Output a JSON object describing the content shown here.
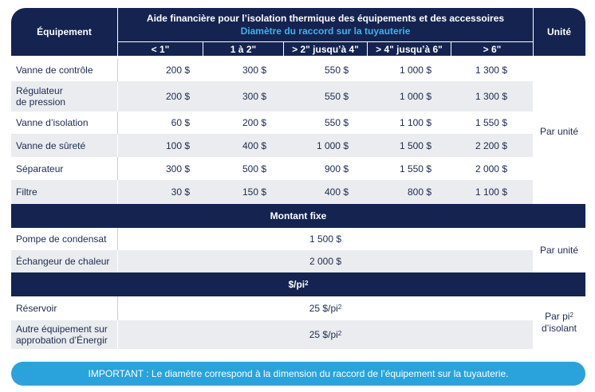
{
  "header": {
    "equipment_col": "Équipement",
    "title": "Aide financière pour l’isolation thermique des équipements et des accessoires",
    "subtitle": "Diamètre du raccord sur la tuyauterie",
    "unit_col": "Unité",
    "sizes": [
      "< 1\"",
      "1 à 2\"",
      "> 2\" jusqu’à 4\"",
      "> 4\" jusqu’à 6\"",
      "> 6\""
    ]
  },
  "section1": {
    "rows": [
      {
        "label": "Vanne de contrôle",
        "values": [
          "200 $",
          "300 $",
          "550 $",
          "1 000 $",
          "1 300 $"
        ]
      },
      {
        "label": "Régulateur\nde pression",
        "values": [
          "200 $",
          "300 $",
          "550 $",
          "1 000 $",
          "1 300 $"
        ]
      },
      {
        "label": "Vanne d’isolation",
        "values": [
          "60 $",
          "200 $",
          "550 $",
          "1 100 $",
          "1 550 $"
        ]
      },
      {
        "label": "Vanne de sûreté",
        "values": [
          "100 $",
          "400 $",
          "1 000 $",
          "1 500 $",
          "2 200 $"
        ]
      },
      {
        "label": "Séparateur",
        "values": [
          "300 $",
          "500 $",
          "900 $",
          "1 550 $",
          "2 000 $"
        ]
      },
      {
        "label": "Filtre",
        "values": [
          "30 $",
          "150 $",
          "400 $",
          "800 $",
          "1 100 $"
        ]
      }
    ],
    "unit": "Par unité"
  },
  "section2": {
    "band": "Montant fixe",
    "rows": [
      {
        "label": "Pompe de condensat",
        "value": "1 500 $"
      },
      {
        "label": "Échangeur de chaleur",
        "value": "2 000 $"
      }
    ],
    "unit": "Par unité"
  },
  "section3": {
    "band_prefix": "$/pi",
    "band_sup": "2",
    "rows": [
      {
        "label": "Réservoir",
        "value_prefix": "25 $/pi",
        "value_sup": "2"
      },
      {
        "label": "Autre équipement sur\napprobation d’Énergir",
        "value_prefix": "25 $/pi",
        "value_sup": "2"
      }
    ],
    "unit_line1_prefix": "Par pi",
    "unit_line1_sup": "2",
    "unit_line2": "d’isolant"
  },
  "note": "IMPORTANT : Le diamètre correspond à la dimension du raccord de l’équipement sur la tuyauterie."
}
